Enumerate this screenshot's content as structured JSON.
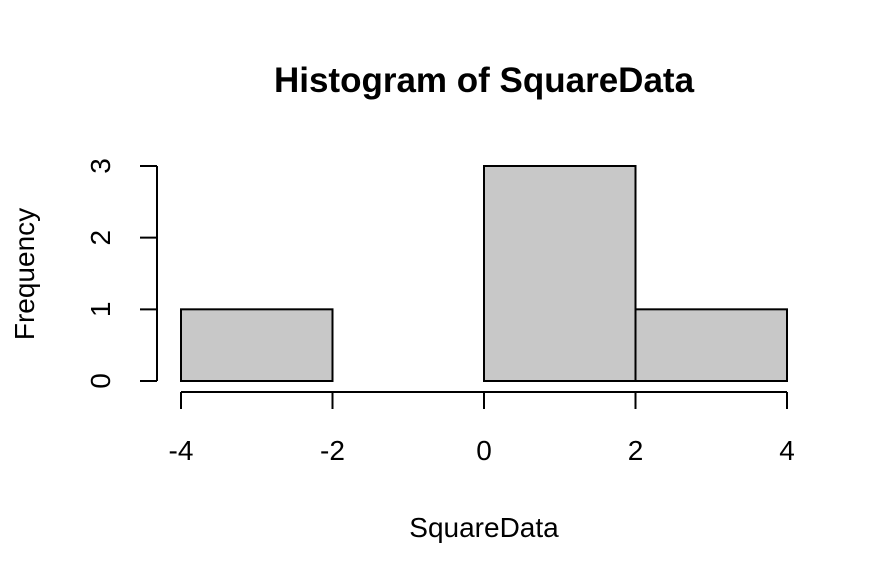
{
  "chart_data": {
    "type": "histogram",
    "title": "Histogram of SquareData",
    "xlabel": "SquareData",
    "ylabel": "Frequency",
    "bins": [
      {
        "start": -4,
        "end": -2,
        "count": 1
      },
      {
        "start": -2,
        "end": 0,
        "count": 0
      },
      {
        "start": 0,
        "end": 2,
        "count": 3
      },
      {
        "start": 2,
        "end": 4,
        "count": 1
      }
    ],
    "xlim": [
      -4,
      4
    ],
    "ylim": [
      0,
      3
    ],
    "xticks": [
      "-4",
      "-2",
      "0",
      "2",
      "4"
    ],
    "yticks": [
      "0",
      "1",
      "2",
      "3"
    ],
    "bar_color": "#c8c8c8",
    "grid": false,
    "legend": "none"
  }
}
